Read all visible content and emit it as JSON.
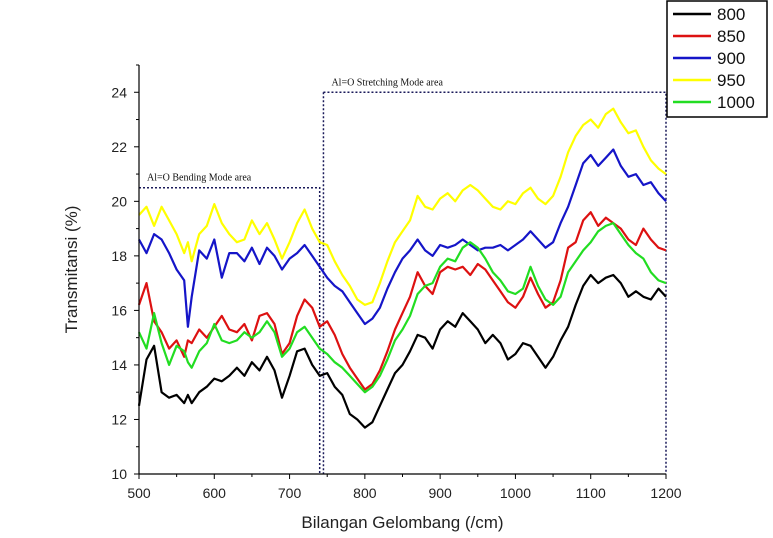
{
  "chart_data": {
    "type": "line",
    "title": "",
    "xlabel": "Bilangan Gelombang (/cm)",
    "ylabel": "Transmitansi (%)",
    "xlim": [
      500,
      1200
    ],
    "ylim": [
      10,
      25
    ],
    "x_ticks": [
      500,
      600,
      700,
      800,
      900,
      1000,
      1100,
      1200
    ],
    "y_ticks": [
      10,
      12,
      14,
      16,
      18,
      20,
      22,
      24
    ],
    "grid": false,
    "legend_position": "top-right",
    "annotations": [
      {
        "text": "Al=O Bending Mode area",
        "x_range": [
          500,
          740
        ],
        "y": 20.5
      },
      {
        "text": "Al=O Stretching Mode area",
        "x_range": [
          745,
          1200
        ],
        "y": 24.0
      }
    ],
    "x": [
      500,
      510,
      520,
      530,
      540,
      550,
      560,
      565,
      570,
      580,
      590,
      600,
      610,
      620,
      630,
      640,
      650,
      660,
      670,
      680,
      690,
      700,
      710,
      720,
      730,
      740,
      750,
      760,
      770,
      780,
      790,
      800,
      810,
      820,
      830,
      840,
      850,
      860,
      870,
      880,
      890,
      900,
      910,
      920,
      930,
      940,
      950,
      960,
      970,
      980,
      990,
      1000,
      1010,
      1020,
      1030,
      1040,
      1050,
      1060,
      1070,
      1080,
      1090,
      1100,
      1110,
      1120,
      1130,
      1140,
      1150,
      1160,
      1170,
      1180,
      1190,
      1200
    ],
    "series": [
      {
        "name": "800",
        "color": "#000000",
        "values": [
          12.5,
          14.2,
          14.7,
          13.0,
          12.8,
          12.9,
          12.6,
          12.9,
          12.6,
          13.0,
          13.2,
          13.5,
          13.4,
          13.6,
          13.9,
          13.6,
          14.1,
          13.8,
          14.3,
          13.8,
          12.8,
          13.6,
          14.5,
          14.6,
          14.0,
          13.6,
          13.7,
          13.2,
          12.9,
          12.2,
          12.0,
          11.7,
          11.9,
          12.5,
          13.1,
          13.7,
          14.0,
          14.5,
          15.1,
          15.0,
          14.6,
          15.3,
          15.6,
          15.4,
          15.9,
          15.6,
          15.3,
          14.8,
          15.1,
          14.8,
          14.2,
          14.4,
          14.8,
          14.7,
          14.3,
          13.9,
          14.3,
          14.9,
          15.4,
          16.2,
          16.9,
          17.3,
          17.0,
          17.2,
          17.3,
          17.0,
          16.5,
          16.7,
          16.5,
          16.4,
          16.8,
          16.5
        ]
      },
      {
        "name": "850",
        "color": "#dd1111",
        "values": [
          16.2,
          17.0,
          15.6,
          15.2,
          14.6,
          14.9,
          14.3,
          14.9,
          14.8,
          15.3,
          15.0,
          15.4,
          15.8,
          15.3,
          15.2,
          15.5,
          14.9,
          15.8,
          15.9,
          15.5,
          14.4,
          14.8,
          15.8,
          16.4,
          16.1,
          15.4,
          15.6,
          15.1,
          14.4,
          13.9,
          13.5,
          13.1,
          13.3,
          13.8,
          14.5,
          15.3,
          15.9,
          16.5,
          17.4,
          16.9,
          16.6,
          17.4,
          17.6,
          17.5,
          17.6,
          17.3,
          17.7,
          17.5,
          17.1,
          16.7,
          16.3,
          16.1,
          16.5,
          17.2,
          16.6,
          16.1,
          16.3,
          17.1,
          18.3,
          18.5,
          19.3,
          19.6,
          19.1,
          19.4,
          19.2,
          19.0,
          18.6,
          18.4,
          19.0,
          18.6,
          18.3,
          18.2
        ]
      },
      {
        "name": "900",
        "color": "#1515c8",
        "values": [
          18.6,
          18.1,
          18.8,
          18.6,
          18.1,
          17.5,
          17.1,
          15.4,
          16.5,
          18.2,
          17.9,
          18.6,
          17.2,
          18.1,
          18.1,
          17.8,
          18.3,
          17.7,
          18.3,
          18.0,
          17.5,
          17.9,
          18.1,
          18.4,
          18.0,
          17.6,
          17.2,
          16.9,
          16.7,
          16.3,
          15.9,
          15.5,
          15.7,
          16.1,
          16.8,
          17.4,
          17.9,
          18.2,
          18.6,
          18.2,
          18.0,
          18.4,
          18.3,
          18.4,
          18.6,
          18.4,
          18.2,
          18.3,
          18.3,
          18.4,
          18.2,
          18.4,
          18.6,
          18.9,
          18.6,
          18.3,
          18.5,
          19.2,
          19.8,
          20.6,
          21.4,
          21.7,
          21.3,
          21.6,
          21.9,
          21.3,
          20.9,
          21.0,
          20.6,
          20.7,
          20.3,
          20.0
        ]
      },
      {
        "name": "950",
        "color": "#ffff00",
        "values": [
          19.5,
          19.8,
          19.1,
          19.8,
          19.3,
          18.8,
          18.1,
          18.5,
          17.8,
          18.8,
          19.1,
          19.9,
          19.2,
          18.8,
          18.5,
          18.6,
          19.3,
          18.8,
          19.2,
          18.6,
          17.9,
          18.5,
          19.2,
          19.7,
          19.0,
          18.5,
          18.4,
          17.8,
          17.3,
          16.9,
          16.4,
          16.2,
          16.3,
          17.0,
          17.8,
          18.5,
          18.9,
          19.3,
          20.2,
          19.8,
          19.7,
          20.1,
          20.3,
          20.0,
          20.4,
          20.6,
          20.4,
          20.1,
          19.8,
          19.7,
          20.0,
          19.9,
          20.3,
          20.5,
          20.1,
          19.9,
          20.2,
          20.9,
          21.8,
          22.4,
          22.8,
          23.0,
          22.7,
          23.2,
          23.4,
          22.9,
          22.5,
          22.6,
          22.0,
          21.5,
          21.2,
          21.0
        ]
      },
      {
        "name": "1000",
        "color": "#22dd22",
        "values": [
          15.2,
          14.6,
          15.9,
          14.8,
          14.0,
          14.7,
          14.5,
          14.1,
          13.9,
          14.5,
          14.8,
          15.5,
          14.9,
          14.8,
          14.9,
          15.2,
          15.0,
          15.2,
          15.6,
          15.2,
          14.3,
          14.6,
          15.2,
          15.4,
          15.0,
          14.6,
          14.4,
          14.1,
          13.9,
          13.6,
          13.3,
          13.0,
          13.2,
          13.6,
          14.2,
          14.9,
          15.3,
          15.8,
          16.6,
          16.9,
          17.0,
          17.6,
          17.9,
          17.8,
          18.3,
          18.5,
          18.3,
          17.9,
          17.4,
          17.1,
          16.7,
          16.6,
          16.8,
          17.6,
          16.9,
          16.4,
          16.2,
          16.5,
          17.4,
          17.8,
          18.2,
          18.5,
          18.9,
          19.1,
          19.2,
          18.8,
          18.4,
          18.1,
          17.9,
          17.4,
          17.1,
          17.0
        ]
      }
    ]
  }
}
